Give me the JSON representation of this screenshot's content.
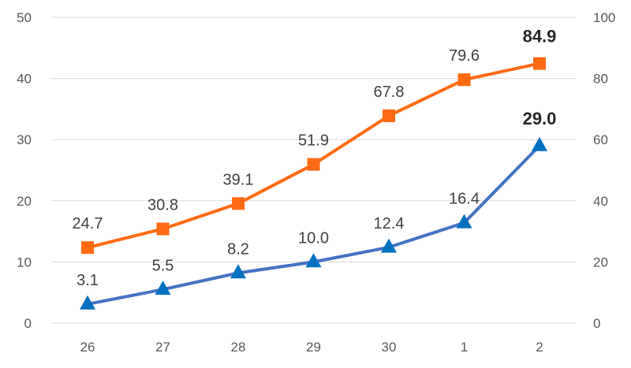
{
  "chart_data": {
    "type": "line",
    "categories": [
      "26",
      "27",
      "28",
      "29",
      "30",
      "1",
      "2"
    ],
    "series": [
      {
        "axis": "left",
        "color": "#4472C4",
        "marker": "triangle",
        "marker_color": "#0070C0",
        "values": [
          3.1,
          5.5,
          8.2,
          10.0,
          12.4,
          16.4,
          29.0
        ],
        "labels": [
          "3.1",
          "5.5",
          "8.2",
          "10.0",
          "12.4",
          "16.4",
          "29.0"
        ],
        "bold_last_label": true
      },
      {
        "axis": "right",
        "color": "#FF6A13",
        "marker": "square",
        "marker_color": "#FF6A13",
        "values": [
          24.7,
          30.8,
          39.1,
          51.9,
          67.8,
          79.6,
          84.9
        ],
        "labels": [
          "24.7",
          "30.8",
          "39.1",
          "51.9",
          "67.8",
          "79.6",
          "84.9"
        ],
        "bold_last_label": true
      }
    ],
    "y_left": {
      "range": [
        0,
        50
      ],
      "ticks": [
        "0",
        "10",
        "20",
        "30",
        "40",
        "50"
      ]
    },
    "y_right": {
      "range": [
        0,
        100
      ],
      "ticks": [
        "0",
        "20",
        "40",
        "60",
        "80",
        "100"
      ]
    },
    "grid": true,
    "legend": "none"
  }
}
